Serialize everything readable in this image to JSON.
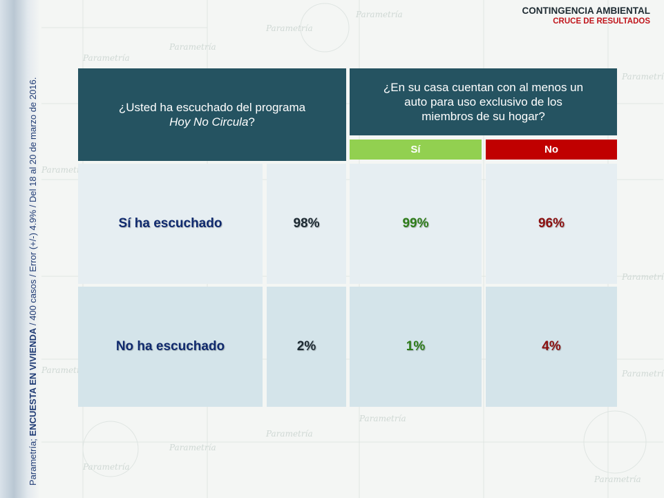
{
  "header": {
    "title": "CONTINGENCIA AMBIENTAL",
    "subtitle": "CRUCE DE RESULTADOS"
  },
  "side_note": {
    "prefix": "Parametría; ",
    "bold": "ENCUESTA EN VIVIENDA",
    "rest": " / 400 casos / Error (+/-) 4.9% / Del 18 al 20 de marzo de 2016."
  },
  "watermark_text": "Parametría",
  "table": {
    "question_left_line1": "¿Usted ha escuchado del programa",
    "question_left_italic": "Hoy No Circula",
    "question_left_end": "?",
    "question_right": "¿En su casa cuentan con al menos un auto para uso exclusivo de los miembros de su hogar?",
    "columns": [
      "Sí",
      "No"
    ],
    "rows": [
      {
        "label": "Sí ha escuchado",
        "total": "98%",
        "si": "99%",
        "no": "96%"
      },
      {
        "label": "No ha escuchado",
        "total": "2%",
        "si": "1%",
        "no": "4%"
      }
    ]
  },
  "colors": {
    "header_bg": "#255361",
    "si_color": "#92d050",
    "no_color": "#c00000",
    "title_red": "#c0151b"
  }
}
